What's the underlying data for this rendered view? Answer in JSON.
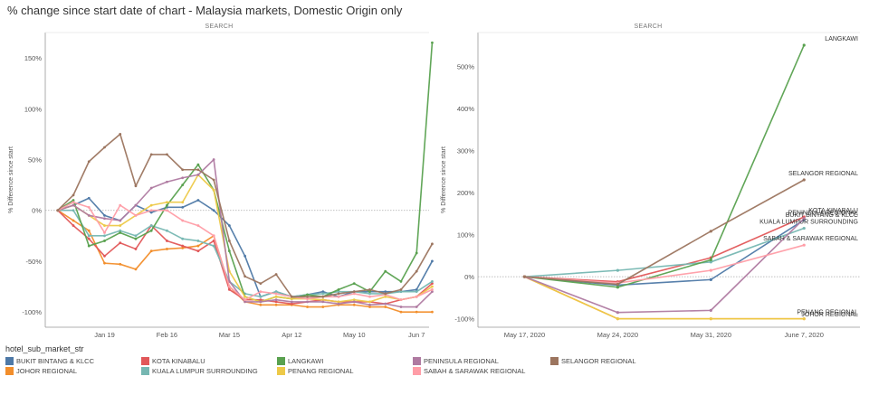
{
  "page_title": "% change since start date of chart - Malaysia markets, Domestic Origin only",
  "colors": {
    "BUKIT BINTANG & KLCC": "#4e79a7",
    "JOHOR REGIONAL": "#f28e2b",
    "KOTA KINABALU": "#e15759",
    "KUALA LUMPUR SURROUNDING": "#76b7b2",
    "LANGKAWI": "#59a14f",
    "PENANG REGIONAL": "#edc948",
    "PENINSULA REGIONAL": "#af7aa1",
    "SABAH & SARAWAK REGIONAL": "#ff9da7",
    "SELANGOR REGIONAL": "#9c755f"
  },
  "legend": {
    "title": "hotel_sub_market_str",
    "items": [
      "BUKIT BINTANG & KLCC",
      "KOTA KINABALU",
      "LANGKAWI",
      "PENINSULA REGIONAL",
      "SELANGOR REGIONAL",
      "JOHOR REGIONAL",
      "KUALA LUMPUR SURROUNDING",
      "PENANG REGIONAL",
      "SABAH & SARAWAK REGIONAL"
    ]
  },
  "chart_data": [
    {
      "type": "line",
      "header": "SEARCH",
      "ylabel": "% Difference since start",
      "xlabel": "",
      "x_tick_labels": [
        "Jan 19",
        "Feb 16",
        "Mar 15",
        "Apr 12",
        "May 10",
        "Jun 7"
      ],
      "x_ticks_weeks": [
        3,
        7,
        11,
        15,
        19,
        23
      ],
      "y_tick_labels": [
        "150%",
        "100%",
        "50%",
        "0%",
        "-50%",
        "-100%"
      ],
      "y_ticks": [
        150,
        100,
        50,
        0,
        -50,
        -100
      ],
      "ylim": [
        -115,
        175
      ],
      "xlim": [
        -0.8,
        23.8
      ],
      "grid": false,
      "zero_line": "dotted",
      "series": [
        {
          "name": "BUKIT BINTANG & KLCC",
          "values": [
            0,
            5,
            12,
            -5,
            -10,
            5,
            -2,
            3,
            3,
            10,
            0,
            -15,
            -45,
            -85,
            -80,
            -85,
            -83,
            -80,
            -85,
            -80,
            -80,
            -80,
            -80,
            -78,
            -50
          ]
        },
        {
          "name": "JOHOR REGIONAL",
          "values": [
            0,
            -10,
            -20,
            -52,
            -53,
            -58,
            -40,
            -38,
            -37,
            -35,
            -25,
            -75,
            -90,
            -93,
            -93,
            -93,
            -95,
            -95,
            -93,
            -93,
            -95,
            -95,
            -100,
            -100,
            -100
          ]
        },
        {
          "name": "KOTA KINABALU",
          "values": [
            0,
            -15,
            -28,
            -45,
            -32,
            -38,
            -15,
            -30,
            -35,
            -40,
            -30,
            -78,
            -88,
            -88,
            -90,
            -92,
            -90,
            -88,
            -90,
            -90,
            -90,
            -92,
            -88,
            -85,
            -72
          ]
        },
        {
          "name": "KUALA LUMPUR SURROUNDING",
          "values": [
            0,
            0,
            -25,
            -25,
            -20,
            -25,
            -15,
            -20,
            -28,
            -30,
            -35,
            -70,
            -82,
            -85,
            -80,
            -85,
            -83,
            -82,
            -80,
            -80,
            -82,
            -82,
            -80,
            -80,
            -70
          ]
        },
        {
          "name": "LANGKAWI",
          "values": [
            0,
            10,
            -35,
            -30,
            -22,
            -28,
            -20,
            5,
            25,
            45,
            20,
            -40,
            -85,
            -90,
            -85,
            -87,
            -83,
            -85,
            -78,
            -72,
            -80,
            -60,
            -70,
            -42,
            165
          ]
        },
        {
          "name": "PENANG REGIONAL",
          "values": [
            0,
            5,
            -5,
            -15,
            -15,
            -5,
            5,
            8,
            8,
            35,
            20,
            -60,
            -85,
            -90,
            -85,
            -87,
            -87,
            -88,
            -90,
            -88,
            -90,
            -85,
            -88,
            -85,
            -75
          ]
        },
        {
          "name": "PENINSULA REGIONAL",
          "values": [
            0,
            5,
            -5,
            -8,
            -10,
            5,
            22,
            28,
            32,
            35,
            50,
            -70,
            -90,
            -90,
            -88,
            -90,
            -90,
            -90,
            -92,
            -90,
            -93,
            -92,
            -95,
            -95,
            -80
          ]
        },
        {
          "name": "SABAH & SARAWAK REGIONAL",
          "values": [
            0,
            8,
            3,
            -22,
            5,
            -5,
            0,
            0,
            -10,
            -15,
            -25,
            -75,
            -88,
            -80,
            -82,
            -85,
            -87,
            -85,
            -85,
            -82,
            -85,
            -83,
            -88,
            -85,
            -78
          ]
        },
        {
          "name": "SELANGOR REGIONAL",
          "values": [
            0,
            15,
            48,
            62,
            75,
            24,
            55,
            55,
            40,
            40,
            30,
            -30,
            -65,
            -72,
            -63,
            -85,
            -85,
            -85,
            -82,
            -80,
            -78,
            -82,
            -78,
            -60,
            -33
          ]
        }
      ]
    },
    {
      "type": "line",
      "header": "SEARCH",
      "ylabel": "% Difference since start",
      "xlabel": "",
      "categories": [
        "May 17, 2020",
        "May 24, 2020",
        "May 31, 2020",
        "June 7, 2020"
      ],
      "y_tick_labels": [
        "500%",
        "400%",
        "300%",
        "200%",
        "100%",
        "0%",
        "-100%"
      ],
      "y_ticks": [
        500,
        400,
        300,
        200,
        100,
        0,
        -100
      ],
      "ylim": [
        -120,
        580
      ],
      "xlim": [
        -0.5,
        3.6
      ],
      "grid": false,
      "zero_line": "dotted",
      "series": [
        {
          "name": "BUKIT BINTANG & KLCC",
          "values": [
            0,
            -20,
            -7,
            135
          ]
        },
        {
          "name": "JOHOR REGIONAL",
          "values": [
            0,
            -100,
            -100,
            -100
          ]
        },
        {
          "name": "KOTA KINABALU",
          "values": [
            0,
            -12,
            45,
            142
          ]
        },
        {
          "name": "KUALA LUMPUR SURROUNDING",
          "values": [
            0,
            15,
            35,
            115
          ]
        },
        {
          "name": "LANGKAWI",
          "values": [
            0,
            -25,
            40,
            550
          ]
        },
        {
          "name": "PENANG REGIONAL",
          "values": [
            0,
            -100,
            -100,
            -100
          ]
        },
        {
          "name": "PENINSULA REGIONAL",
          "values": [
            0,
            -85,
            -80,
            138
          ]
        },
        {
          "name": "SABAH & SARAWAK REGIONAL",
          "values": [
            0,
            -15,
            15,
            75
          ]
        },
        {
          "name": "SELANGOR REGIONAL",
          "values": [
            0,
            -18,
            108,
            230
          ]
        }
      ],
      "end_labels": [
        {
          "series": "LANGKAWI",
          "text": "LANGKAWI"
        },
        {
          "series": "SELANGOR REGIONAL",
          "text": "SELANGOR REGIONAL"
        },
        {
          "series": "KOTA KINABALU",
          "text": "KOTA KINABALU"
        },
        {
          "series": "PENINSULA REGIONAL",
          "text": "PENINSULA REGIONAL"
        },
        {
          "series": "BUKIT BINTANG & KLCC",
          "text": "BUKIT BINTANG & KLCC"
        },
        {
          "series": "KUALA LUMPUR SURROUNDING",
          "text": "KUALA LUMPUR SURROUNDING"
        },
        {
          "series": "SABAH & SARAWAK REGIONAL",
          "text": "SABAH & SARAWAK REGIONAL"
        },
        {
          "series": "PENANG REGIONAL",
          "text": "PENANG REGIONAL"
        },
        {
          "series": "JOHOR REGIONAL",
          "text": "JOHOR REGIONAL"
        }
      ]
    }
  ]
}
